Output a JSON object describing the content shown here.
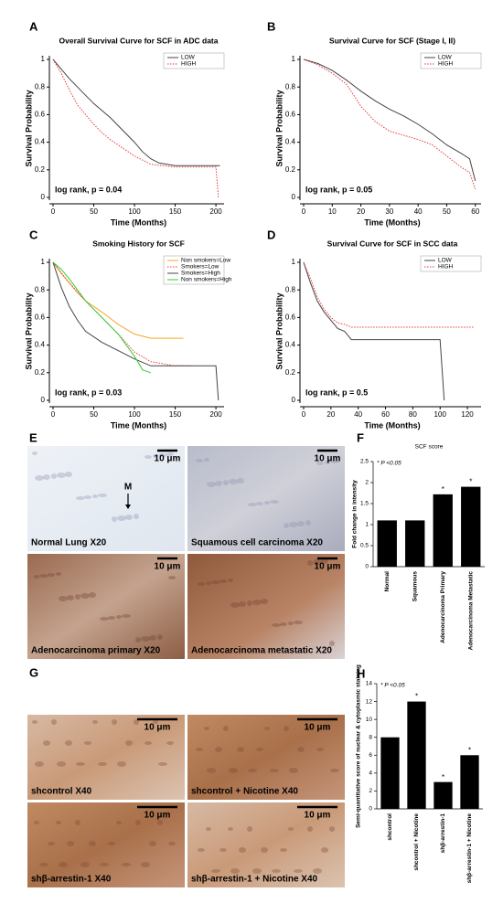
{
  "chart_data": [
    {
      "type": "survival",
      "panel": "A",
      "title": "Overall Survival Curve for SCF in ADC data",
      "xlabel": "Time (Months)",
      "ylabel": "Survival Probability",
      "annotation": "log rank, p = 0.04",
      "xlim": [
        0,
        210
      ],
      "xticks": [
        0,
        50,
        100,
        150,
        200
      ],
      "ylim": [
        0,
        1
      ],
      "yticks": [
        0,
        0.2,
        0.4,
        0.6,
        0.8,
        1
      ],
      "series": [
        {
          "name": "LOW",
          "color": "#444444",
          "line_style": "solid",
          "x": [
            0,
            10,
            20,
            30,
            40,
            50,
            60,
            70,
            80,
            90,
            100,
            110,
            120,
            130,
            150,
            170,
            200,
            205
          ],
          "values": [
            1,
            0.93,
            0.86,
            0.8,
            0.74,
            0.68,
            0.63,
            0.58,
            0.52,
            0.46,
            0.4,
            0.33,
            0.28,
            0.25,
            0.23,
            0.23,
            0.23,
            0.23
          ]
        },
        {
          "name": "HIGH",
          "color": "#e8383d",
          "line_style": "dotted",
          "x": [
            0,
            10,
            20,
            30,
            40,
            50,
            60,
            70,
            80,
            90,
            100,
            110,
            120,
            150,
            200,
            203
          ],
          "values": [
            1,
            0.9,
            0.78,
            0.67,
            0.6,
            0.53,
            0.47,
            0.42,
            0.38,
            0.34,
            0.3,
            0.27,
            0.24,
            0.22,
            0.22,
            0
          ]
        }
      ]
    },
    {
      "type": "survival",
      "panel": "B",
      "title": "Survival Curve for SCF (Stage I, II)",
      "xlabel": "Time (Months)",
      "ylabel": "Survival Probability",
      "annotation": "log rank, p = 0.05",
      "xlim": [
        0,
        62
      ],
      "xticks": [
        0,
        10,
        20,
        30,
        40,
        50,
        60
      ],
      "ylim": [
        0,
        1
      ],
      "yticks": [
        0,
        0.2,
        0.4,
        0.6,
        0.8,
        1
      ],
      "series": [
        {
          "name": "LOW",
          "color": "#444444",
          "line_style": "solid",
          "x": [
            0,
            5,
            10,
            15,
            20,
            25,
            30,
            35,
            40,
            45,
            50,
            55,
            58,
            60
          ],
          "values": [
            1,
            0.97,
            0.92,
            0.85,
            0.77,
            0.7,
            0.64,
            0.59,
            0.53,
            0.46,
            0.38,
            0.32,
            0.28,
            0.12
          ]
        },
        {
          "name": "HIGH",
          "color": "#e8383d",
          "line_style": "dotted",
          "x": [
            0,
            5,
            10,
            15,
            20,
            25,
            30,
            35,
            40,
            45,
            50,
            55,
            58,
            60
          ],
          "values": [
            1,
            0.96,
            0.9,
            0.82,
            0.66,
            0.55,
            0.48,
            0.45,
            0.42,
            0.38,
            0.3,
            0.22,
            0.18,
            0.06
          ]
        }
      ]
    },
    {
      "type": "survival",
      "panel": "C",
      "title": "Smoking History for SCF",
      "xlabel": "Time (Months)",
      "ylabel": "Survival Probability",
      "annotation": "log rank, p = 0.03",
      "xlim": [
        0,
        210
      ],
      "xticks": [
        0,
        50,
        100,
        150,
        200
      ],
      "ylim": [
        0,
        1
      ],
      "yticks": [
        0,
        0.2,
        0.4,
        0.6,
        0.8,
        1
      ],
      "series": [
        {
          "name": "Non smokers=Low",
          "color": "#f5a623",
          "line_style": "solid",
          "x": [
            0,
            10,
            20,
            30,
            40,
            60,
            80,
            100,
            120,
            160
          ],
          "values": [
            1,
            0.92,
            0.85,
            0.78,
            0.72,
            0.64,
            0.55,
            0.48,
            0.45,
            0.45
          ]
        },
        {
          "name": "Smokers=Low",
          "color": "#e8383d",
          "line_style": "dotted",
          "x": [
            0,
            20,
            40,
            60,
            80,
            100,
            120,
            150,
            170
          ],
          "values": [
            1,
            0.85,
            0.72,
            0.6,
            0.48,
            0.35,
            0.28,
            0.25,
            0.25
          ]
        },
        {
          "name": "Smokers=High",
          "color": "#444444",
          "line_style": "solid",
          "x": [
            0,
            10,
            20,
            30,
            40,
            60,
            80,
            100,
            120,
            150,
            200,
            203
          ],
          "values": [
            1,
            0.82,
            0.68,
            0.58,
            0.5,
            0.42,
            0.36,
            0.3,
            0.25,
            0.25,
            0.25,
            0
          ]
        },
        {
          "name": "Non smokers=High",
          "color": "#33cc33",
          "line_style": "solid",
          "x": [
            0,
            10,
            20,
            40,
            60,
            80,
            100,
            110,
            120
          ],
          "values": [
            1,
            0.95,
            0.88,
            0.72,
            0.6,
            0.48,
            0.32,
            0.22,
            0.2
          ]
        }
      ]
    },
    {
      "type": "survival",
      "panel": "D",
      "title": "Survival Curve for SCF in SCC data",
      "xlabel": "Time (Months)",
      "ylabel": "Survival Probability",
      "annotation": "log rank, p = 0.5",
      "xlim": [
        0,
        130
      ],
      "xticks": [
        0,
        20,
        40,
        60,
        80,
        100,
        120
      ],
      "ylim": [
        0,
        1
      ],
      "yticks": [
        0,
        0.2,
        0.4,
        0.6,
        0.8,
        1
      ],
      "series": [
        {
          "name": "LOW",
          "color": "#444444",
          "line_style": "solid",
          "x": [
            0,
            5,
            10,
            15,
            20,
            25,
            30,
            35,
            40,
            60,
            80,
            100,
            103
          ],
          "values": [
            1,
            0.85,
            0.72,
            0.64,
            0.58,
            0.52,
            0.5,
            0.44,
            0.44,
            0.44,
            0.44,
            0.44,
            0
          ]
        },
        {
          "name": "HIGH",
          "color": "#e8383d",
          "line_style": "dotted",
          "x": [
            0,
            5,
            10,
            15,
            20,
            25,
            30,
            35,
            60,
            90,
            125
          ],
          "values": [
            1,
            0.88,
            0.75,
            0.66,
            0.6,
            0.56,
            0.55,
            0.53,
            0.53,
            0.53,
            0.53
          ]
        }
      ]
    },
    {
      "type": "bar",
      "panel": "F",
      "title": "SCF score",
      "note": "* P <0.05",
      "ylabel": "Fold change in intensity",
      "color": "#000000",
      "categories": [
        "Normal",
        "Squamous",
        "Adenocarcinoma Primary",
        "Adenocarcinoma Metastatic"
      ],
      "values": [
        1.1,
        1.1,
        1.72,
        1.9
      ],
      "significance": [
        null,
        null,
        "*",
        "*"
      ],
      "ylim": [
        0,
        2.5
      ],
      "yticks": [
        0,
        0.5,
        1,
        1.5,
        2,
        2.5
      ]
    },
    {
      "type": "bar",
      "panel": "H",
      "note": "* P <0.05",
      "ylabel": "Semi-quantitative score of nuclear & cytoplasmic staining",
      "color": "#000000",
      "categories": [
        "shcontrol",
        "shcontrol + Nicotine",
        "shβ-arrestin-1",
        "shβ-arrestin-1 + Nicotine"
      ],
      "values": [
        8,
        12,
        3,
        6
      ],
      "significance": [
        null,
        "*",
        "*",
        "*"
      ],
      "ylim": [
        0,
        14
      ],
      "yticks": [
        0,
        2,
        4,
        6,
        8,
        10,
        12,
        14
      ]
    }
  ],
  "images": [
    {
      "panel": "E",
      "marker": "M",
      "tiles": [
        {
          "caption": "Normal Lung X20",
          "scale": "10 μm"
        },
        {
          "caption": "Squamous cell carcinoma X20",
          "scale": "10 μm"
        },
        {
          "caption": "Adenocarcinoma primary X20",
          "scale": "10 μm"
        },
        {
          "caption": "Adenocarcinoma metastatic X20",
          "scale": "10 μm"
        }
      ]
    },
    {
      "panel": "G",
      "tiles": [
        {
          "caption": "shcontrol X40",
          "scale": "10 μm"
        },
        {
          "caption": "shcontrol + Nicotine X40",
          "scale": "10 μm"
        },
        {
          "caption": "shβ-arrestin-1  X40",
          "scale": "10 μm"
        },
        {
          "caption": "shβ-arrestin-1 + Nicotine  X40",
          "scale": "10 μm"
        }
      ]
    }
  ]
}
